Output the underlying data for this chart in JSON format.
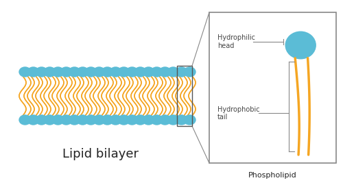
{
  "bg_color": "#ffffff",
  "head_color": "#5bbcd6",
  "tail_color": "#f5a623",
  "text_color": "#222222",
  "label_color": "#444444",
  "n_heads": 21,
  "title": "Lipid bilayer",
  "zoom_label": "Phospholipid",
  "label_head": "Hydrophilic\nhead",
  "label_tail": "Hydrophobic\ntail"
}
